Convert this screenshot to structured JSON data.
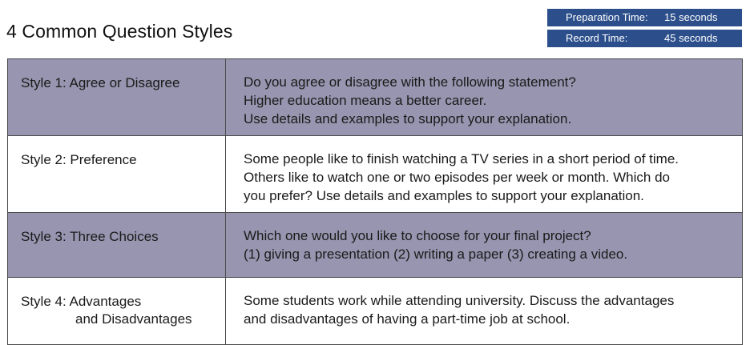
{
  "title": "4 Common Question Styles",
  "timing": {
    "preparation_label": "Preparation Time:",
    "preparation_value": "15 seconds",
    "record_label": "Record Time:",
    "record_value": "45 seconds"
  },
  "rows": [
    {
      "label_lines": [
        "Style 1: Agree or Disagree"
      ],
      "text_lines": [
        "Do you agree or disagree with the following statement?",
        "Higher education means a better career.",
        "Use details and examples to support your explanation."
      ]
    },
    {
      "label_lines": [
        "Style 2: Preference"
      ],
      "text_lines": [
        "Some people like to finish watching a TV series in a short period of time.",
        "Others like to watch one or two episodes per week or month. Which do",
        "you prefer? Use details and examples to support your explanation."
      ]
    },
    {
      "label_lines": [
        "Style 3: Three Choices"
      ],
      "text_lines": [
        "Which one would you like to choose for your final project?",
        "(1) giving a presentation (2) writing a paper (3) creating a video."
      ]
    },
    {
      "label_lines": [
        "Style 4: Advantages",
        "and Disadvantages"
      ],
      "text_lines": [
        "Some students work while attending university. Discuss the advantages",
        "and disadvantages of having a part-time job at school."
      ]
    }
  ],
  "colors": {
    "header_box": "#2c4f8b",
    "shaded_row": "#9795af",
    "border": "#4a4a4a"
  }
}
